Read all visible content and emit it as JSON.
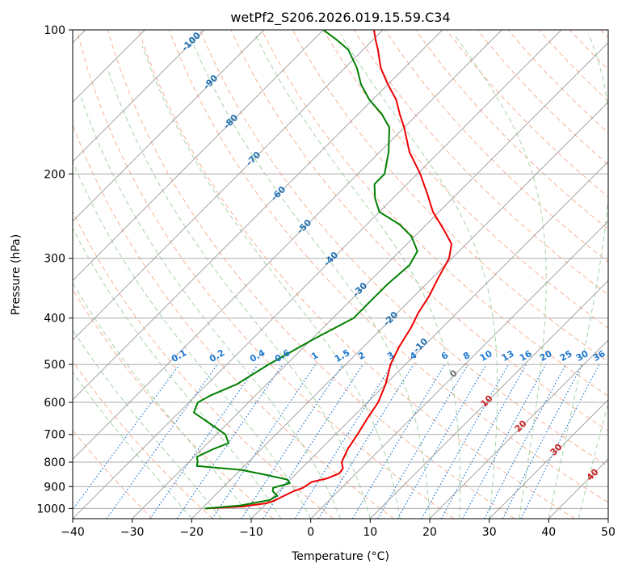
{
  "colors": {
    "temperature": "#ee0000",
    "dewpoint": "#008000",
    "isotherm": "#9a9a9a",
    "isobar": "#aaaaaa",
    "dry_adiabat": "#f5a484",
    "moist_adiabat": "#9ccf9a",
    "mixing_ratio": "#1e78d0",
    "isotherm_label": "#1f6fb0",
    "moist_label": "#cc2020",
    "zero_label": "#707070",
    "frame": "#000000"
  },
  "chart_data": {
    "type": "line",
    "subtype": "skew-t log-p",
    "title": "wetPf2_S206.2026.019.15.59.C34",
    "xlabel": "Temperature (°C)",
    "ylabel": "Pressure (hPa)",
    "xlim": [
      -40,
      50
    ],
    "ylim": [
      1050,
      100
    ],
    "y_scale": "log",
    "grid": true,
    "x_ticks": [
      -40,
      -30,
      -20,
      -10,
      0,
      10,
      20,
      30,
      40,
      50
    ],
    "x_tick_labels": [
      "−40",
      "−30",
      "−20",
      "−10",
      "0",
      "10",
      "20",
      "30",
      "40",
      "50"
    ],
    "y_ticks": [
      100,
      200,
      300,
      400,
      500,
      600,
      700,
      800,
      900,
      1000
    ],
    "y_tick_labels": [
      "100",
      "200",
      "300",
      "400",
      "500",
      "600",
      "700",
      "800",
      "900",
      "1000"
    ],
    "isotherm_labels": [
      "-100",
      "-90",
      "-80",
      "-70",
      "-60",
      "-50",
      "-40",
      "-30",
      "-20",
      "-10",
      "0"
    ],
    "isotherm_label_values": [
      -100,
      -90,
      -80,
      -70,
      -60,
      -50,
      -40,
      -30,
      -20,
      -10,
      0
    ],
    "mixing_ratio_labels": [
      "0.1",
      "0.2",
      "0.4",
      "0.6",
      "1",
      "1.5",
      "2",
      "3",
      "4",
      "6",
      "8",
      "10",
      "13",
      "16",
      "20",
      "25",
      "30",
      "36"
    ],
    "mixing_ratio_values": [
      0.1,
      0.2,
      0.4,
      0.6,
      1,
      1.5,
      2,
      3,
      4,
      6,
      8,
      10,
      13,
      16,
      20,
      25,
      30,
      36
    ],
    "moist_adiabat_labels": [
      "10",
      "20",
      "30",
      "40"
    ],
    "moist_adiabat_label_values": [
      10,
      20,
      30,
      40
    ],
    "series": [
      {
        "id": "temperature",
        "points": [
          [
            1000,
            -19.3
          ],
          [
            990,
            -13.5
          ],
          [
            975,
            -10.0
          ],
          [
            960,
            -9.0
          ],
          [
            940,
            -8.3
          ],
          [
            920,
            -7.5
          ],
          [
            905,
            -6.5
          ],
          [
            880,
            -6.0
          ],
          [
            865,
            -4.0
          ],
          [
            845,
            -2.8
          ],
          [
            825,
            -3.0
          ],
          [
            800,
            -4.3
          ],
          [
            750,
            -5.5
          ],
          [
            700,
            -6.3
          ],
          [
            650,
            -7.3
          ],
          [
            600,
            -8.2
          ],
          [
            550,
            -10.0
          ],
          [
            500,
            -12.5
          ],
          [
            460,
            -14.0
          ],
          [
            420,
            -15.2
          ],
          [
            390,
            -16.5
          ],
          [
            360,
            -17.5
          ],
          [
            330,
            -19.0
          ],
          [
            300,
            -20.5
          ],
          [
            280,
            -22.5
          ],
          [
            260,
            -26.5
          ],
          [
            240,
            -31.0
          ],
          [
            220,
            -35.0
          ],
          [
            200,
            -39.5
          ],
          [
            180,
            -45.0
          ],
          [
            160,
            -50.0
          ],
          [
            150,
            -53.0
          ],
          [
            140,
            -56.0
          ],
          [
            130,
            -60.0
          ],
          [
            120,
            -64.0
          ],
          [
            110,
            -67.5
          ],
          [
            105,
            -69.5
          ],
          [
            100,
            -71.5
          ]
        ]
      },
      {
        "id": "dewpoint",
        "points": [
          [
            1000,
            -19.5
          ],
          [
            985,
            -14.0
          ],
          [
            960,
            -10.0
          ],
          [
            940,
            -9.5
          ],
          [
            920,
            -11.0
          ],
          [
            905,
            -11.5
          ],
          [
            885,
            -9.5
          ],
          [
            870,
            -10.5
          ],
          [
            850,
            -15.0
          ],
          [
            830,
            -20.0
          ],
          [
            815,
            -28.0
          ],
          [
            800,
            -28.5
          ],
          [
            780,
            -29.5
          ],
          [
            750,
            -28.0
          ],
          [
            730,
            -26.5
          ],
          [
            700,
            -28.5
          ],
          [
            660,
            -33.5
          ],
          [
            630,
            -37.5
          ],
          [
            600,
            -38.5
          ],
          [
            580,
            -37.5
          ],
          [
            550,
            -35.0
          ],
          [
            500,
            -33.0
          ],
          [
            440,
            -29.5
          ],
          [
            400,
            -26.5
          ],
          [
            370,
            -26.5
          ],
          [
            340,
            -26.5
          ],
          [
            310,
            -26.0
          ],
          [
            290,
            -27.0
          ],
          [
            270,
            -30.5
          ],
          [
            255,
            -34.5
          ],
          [
            240,
            -40.0
          ],
          [
            225,
            -43.0
          ],
          [
            210,
            -45.5
          ],
          [
            200,
            -45.5
          ],
          [
            180,
            -48.5
          ],
          [
            160,
            -52.5
          ],
          [
            150,
            -56.0
          ],
          [
            140,
            -60.5
          ],
          [
            130,
            -64.5
          ],
          [
            120,
            -68.0
          ],
          [
            110,
            -72.5
          ],
          [
            105,
            -76.0
          ],
          [
            100,
            -80.0
          ]
        ]
      }
    ]
  }
}
